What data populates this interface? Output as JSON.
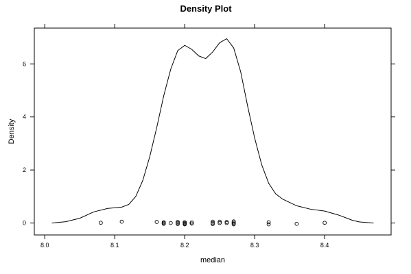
{
  "chart_data": {
    "type": "line",
    "title": "Density Plot",
    "xlabel": "median",
    "ylabel": "Density",
    "xlim": [
      7.985,
      8.495
    ],
    "ylim": [
      -0.45,
      7.35
    ],
    "x_ticks": [
      8.0,
      8.1,
      8.2,
      8.3,
      8.4
    ],
    "x_tick_labels": [
      "8.0",
      "8.1",
      "8.2",
      "8.3",
      "8.4"
    ],
    "y_ticks": [
      0,
      2,
      4,
      6
    ],
    "y_tick_labels": [
      "0",
      "2",
      "4",
      "6"
    ],
    "grid": false,
    "density_curve": {
      "x": [
        8.01,
        8.03,
        8.05,
        8.07,
        8.09,
        8.11,
        8.12,
        8.13,
        8.14,
        8.15,
        8.16,
        8.17,
        8.18,
        8.19,
        8.2,
        8.21,
        8.22,
        8.23,
        8.24,
        8.25,
        8.26,
        8.27,
        8.28,
        8.29,
        8.3,
        8.31,
        8.32,
        8.33,
        8.34,
        8.36,
        8.38,
        8.4,
        8.42,
        8.44,
        8.45,
        8.47
      ],
      "y": [
        0.0,
        0.05,
        0.18,
        0.42,
        0.55,
        0.6,
        0.7,
        1.0,
        1.6,
        2.5,
        3.6,
        4.8,
        5.8,
        6.5,
        6.7,
        6.55,
        6.3,
        6.2,
        6.45,
        6.8,
        6.95,
        6.6,
        5.7,
        4.4,
        3.2,
        2.2,
        1.5,
        1.1,
        0.9,
        0.65,
        0.52,
        0.45,
        0.3,
        0.1,
        0.04,
        0.0
      ]
    },
    "rug_points": {
      "x": [
        8.08,
        8.11,
        8.16,
        8.17,
        8.17,
        8.17,
        8.18,
        8.19,
        8.19,
        8.19,
        8.2,
        8.2,
        8.2,
        8.2,
        8.21,
        8.21,
        8.24,
        8.24,
        8.24,
        8.25,
        8.25,
        8.26,
        8.26,
        8.27,
        8.27,
        8.27,
        8.27,
        8.32,
        8.32,
        8.36,
        8.4
      ],
      "y": [
        0.01,
        0.05,
        0.04,
        0.03,
        0.0,
        -0.03,
        0.0,
        0.04,
        0.0,
        -0.04,
        0.03,
        0.0,
        -0.03,
        -0.05,
        0.02,
        -0.02,
        0.05,
        0.0,
        -0.04,
        0.05,
        0.0,
        0.04,
        0.0,
        0.06,
        0.02,
        -0.02,
        -0.05,
        0.03,
        -0.05,
        -0.03,
        0.01
      ]
    }
  }
}
